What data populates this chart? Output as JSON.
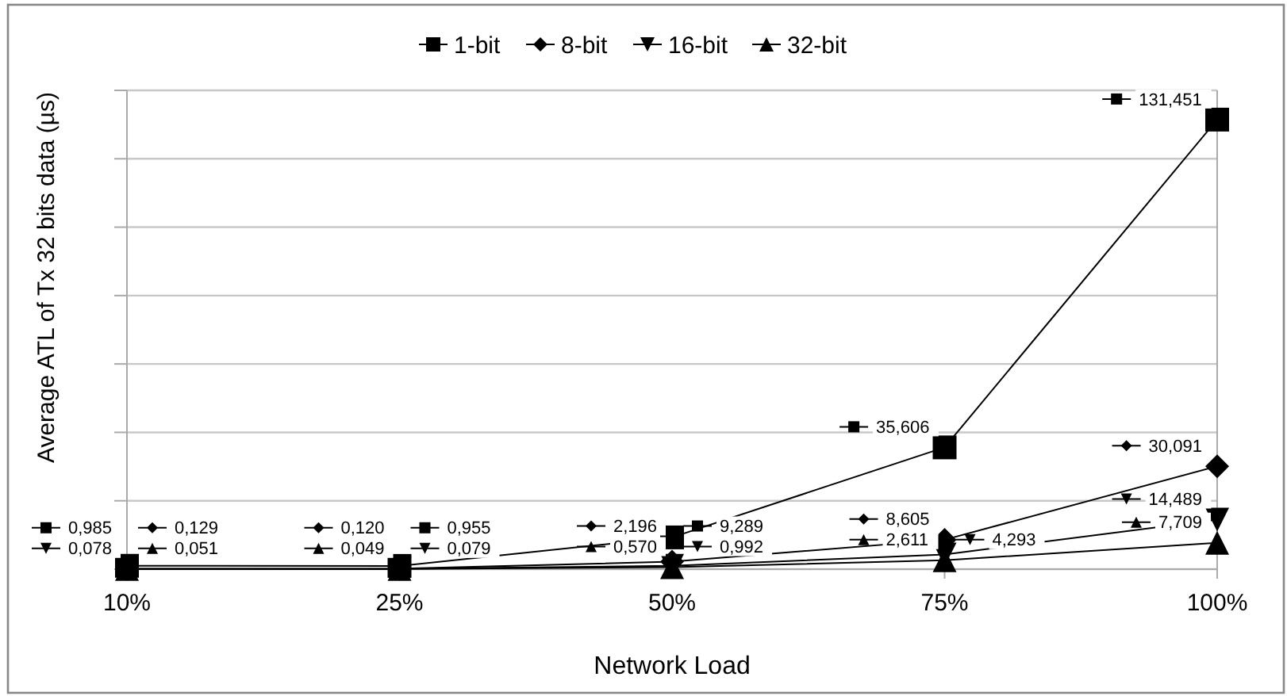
{
  "chart_data": {
    "type": "line",
    "xlabel": "Network Load",
    "ylabel": "Average ATL of Tx 32 bits data (µs)",
    "categories": [
      "10%",
      "25%",
      "50%",
      "75%",
      "100%"
    ],
    "ylim": [
      0,
      140
    ],
    "yticks": [
      {
        "value": 0,
        "label": null
      },
      {
        "value": 20,
        "label": null
      },
      {
        "value": 40,
        "label": null
      },
      {
        "value": 60,
        "label": null
      },
      {
        "value": 80,
        "label": null
      },
      {
        "value": 100,
        "label": null
      },
      {
        "value": 120,
        "label": null
      },
      {
        "value": 140,
        "label": null
      }
    ],
    "tick_labels": "x",
    "grid": "y",
    "legend": "top",
    "series": [
      {
        "name": "1-bit",
        "color": "#000000",
        "marker": "square",
        "values": [
          0.985,
          0.955,
          9.289,
          35.606,
          131.451
        ],
        "value_labels": [
          "0,985",
          "0,955",
          "9,289",
          "35,606",
          "131,451"
        ]
      },
      {
        "name": "8-bit",
        "color": "#000000",
        "marker": "diamond",
        "values": [
          0.129,
          0.12,
          2.196,
          8.605,
          30.091
        ],
        "value_labels": [
          "0,129",
          "0,120",
          "2,196",
          "8,605",
          "30,091"
        ]
      },
      {
        "name": "16-bit",
        "color": "#000000",
        "marker": "triangle-down",
        "values": [
          0.078,
          0.079,
          0.992,
          4.293,
          14.489
        ],
        "value_labels": [
          "0,078",
          "0,079",
          "0,992",
          "4,293",
          "14,489"
        ]
      },
      {
        "name": "32-bit",
        "color": "#000000",
        "marker": "triangle",
        "values": [
          0.051,
          0.049,
          0.57,
          2.611,
          7.709
        ],
        "value_labels": [
          "0,051",
          "0,049",
          "0,570",
          "2,611",
          "7,709"
        ]
      }
    ]
  }
}
